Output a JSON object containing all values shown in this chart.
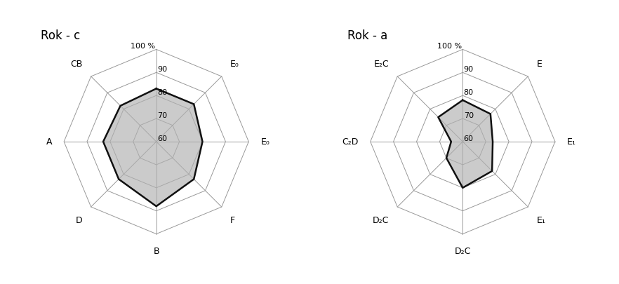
{
  "chart_c": {
    "title": "Rok - c",
    "categories": [
      "100 %",
      "E₀",
      "E₀",
      "F",
      "B",
      "D",
      "A",
      "CB"
    ],
    "values": [
      83,
      83,
      80,
      83,
      88,
      83,
      83,
      82
    ],
    "r_min": 60,
    "r_max": 100,
    "r_ticks": [
      60,
      70,
      80,
      90,
      100
    ],
    "fill_color": "#b0b0b0",
    "fill_alpha": 0.65,
    "line_color": "#111111",
    "grid_color": "#999999",
    "spoke_color": "#999999"
  },
  "chart_a": {
    "title": "Rok - a",
    "categories": [
      "100 %",
      "E",
      "E₁",
      "E₁",
      "D₂C",
      "D₂C",
      "C₂D",
      "E₂C"
    ],
    "values": [
      78,
      77,
      73,
      78,
      80,
      70,
      65,
      75
    ],
    "r_min": 60,
    "r_max": 100,
    "r_ticks": [
      60,
      70,
      80,
      90,
      100
    ],
    "fill_color": "#b0b0b0",
    "fill_alpha": 0.65,
    "line_color": "#111111",
    "grid_color": "#999999",
    "spoke_color": "#999999"
  },
  "bg_color": "#ffffff",
  "title_fontsize": 12,
  "label_fontsize": 9,
  "tick_fontsize": 8
}
